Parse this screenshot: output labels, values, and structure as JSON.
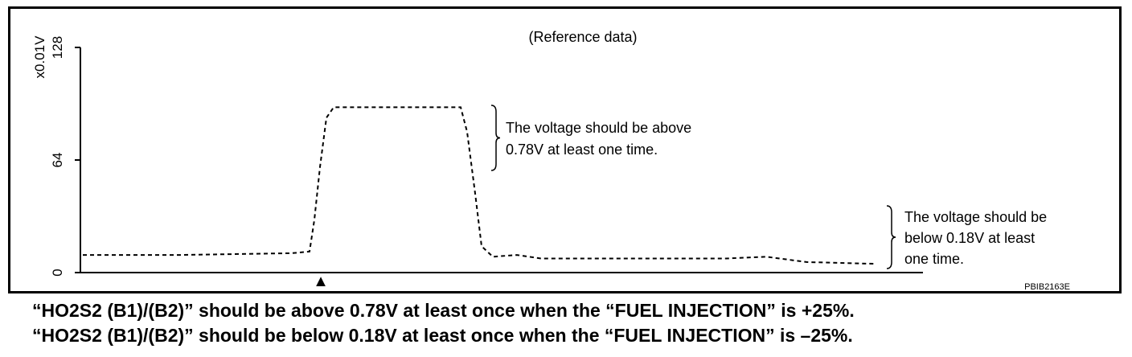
{
  "chart_data": {
    "type": "line",
    "title": "(Reference data)",
    "ylabel": "x0.01V",
    "xlabel": "",
    "ylim": [
      0,
      128
    ],
    "yticks": [
      0,
      64,
      128
    ],
    "grid": false,
    "line_style": "dashed",
    "series": [
      {
        "points": [
          [
            0,
            10
          ],
          [
            120,
            10
          ],
          [
            260,
            11
          ],
          [
            282,
            12
          ],
          [
            288,
            30
          ],
          [
            295,
            60
          ],
          [
            303,
            88
          ],
          [
            312,
            94
          ],
          [
            400,
            94
          ],
          [
            470,
            94
          ],
          [
            478,
            80
          ],
          [
            488,
            45
          ],
          [
            496,
            15
          ],
          [
            510,
            9
          ],
          [
            540,
            10
          ],
          [
            570,
            8
          ],
          [
            660,
            8
          ],
          [
            800,
            8
          ],
          [
            850,
            9
          ],
          [
            900,
            6
          ],
          [
            985,
            5
          ]
        ]
      }
    ],
    "annotations": [
      {
        "lines": [
          "The voltage should be above",
          "0.78V at least one time."
        ]
      },
      {
        "lines": [
          "The voltage should be",
          "below 0.18V at least",
          "one time."
        ]
      }
    ],
    "marker": "▲",
    "figure_id": "PBIB2163E"
  },
  "captions": [
    "“HO2S2 (B1)/(B2)” should be above 0.78V at least once when the “FUEL INJECTION” is +25%.",
    "“HO2S2 (B1)/(B2)” should be below 0.18V at least once when the “FUEL INJECTION” is –25%."
  ]
}
